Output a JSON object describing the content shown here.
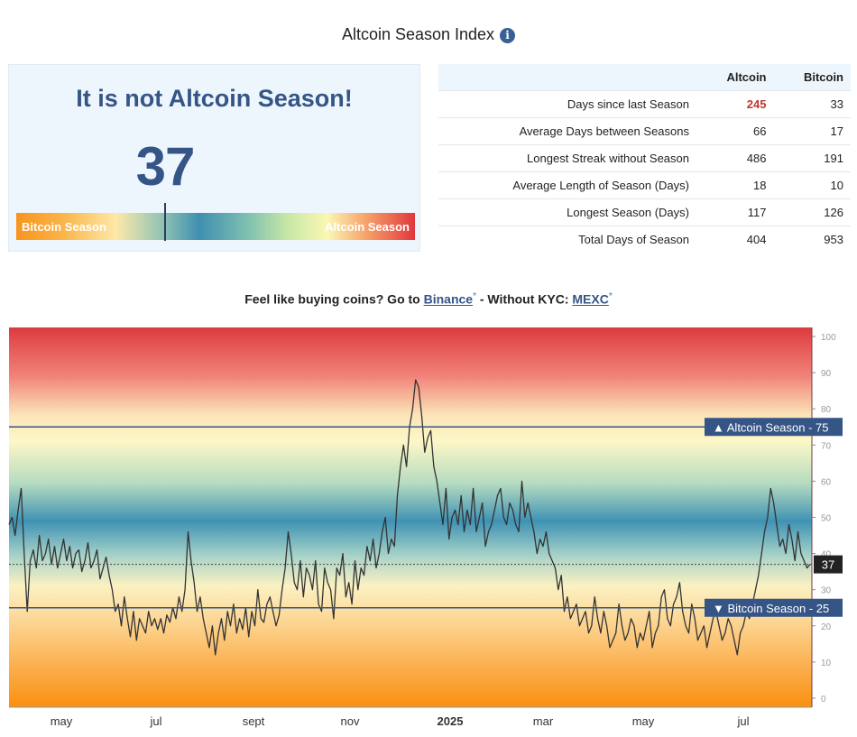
{
  "page": {
    "title": "Altcoin Season Index",
    "info_icon": "i"
  },
  "gauge": {
    "status": "It is not Altcoin Season!",
    "value": "37",
    "bar_left_label": "Bitcoin Season",
    "bar_right_label": "Altcoin Season",
    "marker_fraction": 0.37
  },
  "stats": {
    "headers": [
      "",
      "Altcoin",
      "Bitcoin"
    ],
    "rows": [
      {
        "label": "Days since last Season",
        "altcoin": "245",
        "bitcoin": "33"
      },
      {
        "label": "Average Days between Seasons",
        "altcoin": "66",
        "bitcoin": "17"
      },
      {
        "label": "Longest Streak without Season",
        "altcoin": "486",
        "bitcoin": "191"
      },
      {
        "label": "Average Length of Season (Days)",
        "altcoin": "18",
        "bitcoin": "10"
      },
      {
        "label": "Longest Season (Days)",
        "altcoin": "117",
        "bitcoin": "126"
      },
      {
        "label": "Total Days of Season",
        "altcoin": "404",
        "bitcoin": "953"
      }
    ],
    "highlight_color": "#c0392b"
  },
  "promo": {
    "prefix": "Feel like buying coins? Go to ",
    "link1": "Binance",
    "link1_sup": "*",
    "middle": " - Without KYC: ",
    "link2": "MEXC",
    "link2_sup": "*"
  },
  "chart_data": {
    "type": "line",
    "ylim": [
      0,
      100
    ],
    "y_ticks": [
      0,
      10,
      20,
      30,
      40,
      50,
      60,
      70,
      80,
      90,
      100
    ],
    "x_ticks": [
      "may",
      "jul",
      "sept",
      "nov",
      "2025",
      "mar",
      "may",
      "jul"
    ],
    "bold_x_tick": "2025",
    "current_value": 37,
    "current_label": "37",
    "thresholds": [
      {
        "label": "▲ Altcoin Season - 75",
        "value": 75
      },
      {
        "label": "▼ Bitcoin Season - 25",
        "value": 25
      }
    ],
    "series": [
      {
        "values": [
          48,
          50,
          45,
          52,
          58,
          40,
          24,
          38,
          41,
          36,
          45,
          38,
          40,
          44,
          37,
          42,
          36,
          40,
          44,
          38,
          42,
          36,
          40,
          41,
          35,
          38,
          43,
          36,
          38,
          41,
          33,
          36,
          39,
          34,
          30,
          24,
          26,
          20,
          28,
          22,
          17,
          24,
          16,
          22,
          20,
          18,
          24,
          20,
          22,
          19,
          22,
          18,
          23,
          21,
          25,
          22,
          28,
          24,
          30,
          46,
          38,
          32,
          24,
          28,
          22,
          18,
          14,
          20,
          12,
          18,
          22,
          16,
          24,
          20,
          26,
          18,
          22,
          19,
          25,
          17,
          24,
          20,
          30,
          22,
          21,
          26,
          28,
          24,
          20,
          23,
          30,
          36,
          46,
          40,
          32,
          30,
          38,
          28,
          36,
          34,
          30,
          38,
          26,
          24,
          36,
          32,
          30,
          22,
          36,
          34,
          40,
          28,
          32,
          26,
          38,
          30,
          36,
          34,
          42,
          38,
          44,
          36,
          40,
          46,
          50,
          40,
          44,
          42,
          56,
          64,
          70,
          64,
          75,
          80,
          88,
          86,
          78,
          68,
          72,
          74,
          64,
          60,
          54,
          48,
          58,
          44,
          50,
          52,
          48,
          56,
          46,
          52,
          48,
          58,
          46,
          50,
          54,
          42,
          46,
          48,
          52,
          56,
          58,
          50,
          48,
          54,
          52,
          48,
          46,
          60,
          50,
          54,
          50,
          46,
          40,
          44,
          42,
          46,
          40,
          38,
          36,
          30,
          34,
          24,
          28,
          22,
          24,
          26,
          20,
          22,
          24,
          18,
          20,
          28,
          22,
          18,
          24,
          20,
          14,
          16,
          18,
          26,
          20,
          16,
          18,
          22,
          20,
          14,
          18,
          16,
          20,
          24,
          14,
          18,
          20,
          28,
          30,
          22,
          20,
          26,
          28,
          32,
          24,
          20,
          18,
          26,
          22,
          16,
          18,
          20,
          14,
          18,
          22,
          24,
          20,
          16,
          18,
          22,
          20,
          16,
          12,
          18,
          20,
          24,
          22,
          26,
          30,
          34,
          40,
          46,
          50,
          58,
          54,
          48,
          42,
          44,
          40,
          48,
          44,
          38,
          46,
          40,
          38,
          36,
          37
        ],
        "color": "#333333"
      }
    ]
  },
  "colors": {
    "accent": "#355586",
    "threshold_label_bg": "#355586",
    "current_label_bg": "#222222",
    "threshold_line": "#355586",
    "plot_border": "#8a4a4a"
  }
}
